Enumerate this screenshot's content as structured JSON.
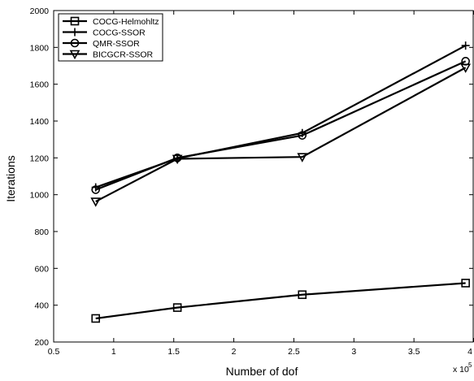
{
  "chart_data": {
    "type": "line",
    "xlabel": "Number of dof",
    "ylabel": "Iterations",
    "x_multiplier_label": "x 10",
    "x_multiplier_exp": "5",
    "xlim": [
      0.5,
      4
    ],
    "ylim": [
      200,
      2000
    ],
    "x_ticks": [
      0.5,
      1,
      1.5,
      2,
      2.5,
      3,
      3.5,
      4
    ],
    "y_ticks": [
      200,
      400,
      600,
      800,
      1000,
      1200,
      1400,
      1600,
      1800,
      2000
    ],
    "x_tick_labels": [
      "0.5",
      "1",
      "1.5",
      "2",
      "2.5",
      "3",
      "3.5",
      "4"
    ],
    "y_tick_labels": [
      "200",
      "400",
      "600",
      "800",
      "1000",
      "1200",
      "1400",
      "1600",
      "1800",
      "2000"
    ],
    "grid": false,
    "legend_position": "top-left",
    "x": [
      0.85,
      1.53,
      2.57,
      3.93
    ],
    "series": [
      {
        "name": "COCG-Helmohltz",
        "marker": "square",
        "values": [
          328,
          387,
          457,
          520
        ]
      },
      {
        "name": "COCG-SSOR",
        "marker": "plus",
        "values": [
          1040,
          1197,
          1335,
          1810
        ]
      },
      {
        "name": "QMR-SSOR",
        "marker": "circle",
        "values": [
          1027,
          1200,
          1322,
          1725
        ]
      },
      {
        "name": "BICGCR-SSOR",
        "marker": "triangle-down",
        "values": [
          963,
          1195,
          1205,
          1690
        ]
      }
    ],
    "color": "#000000"
  }
}
